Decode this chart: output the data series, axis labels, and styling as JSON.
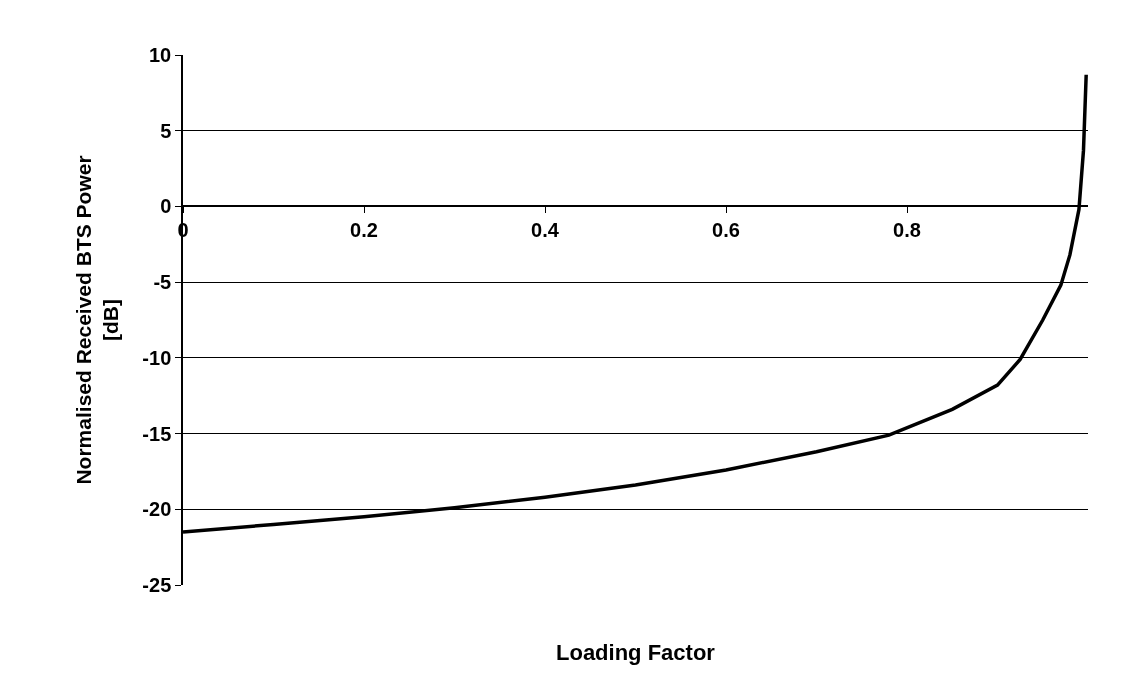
{
  "chart_data": {
    "type": "line",
    "xlabel": "Loading Factor",
    "ylabel": "Normalised Received BTS Power\n[dB]",
    "x": [
      0,
      0.1,
      0.2,
      0.3,
      0.4,
      0.5,
      0.6,
      0.7,
      0.78,
      0.85,
      0.9,
      0.925,
      0.95,
      0.97,
      0.98,
      0.99,
      0.995,
      0.998
    ],
    "series": [
      {
        "color": "#000000",
        "values": [
          -21.5,
          -21,
          -20.5,
          -19.9,
          -19.2,
          -18.4,
          -17.4,
          -16.2,
          -15.1,
          -13.4,
          -11.8,
          -10.1,
          -7.5,
          -5.2,
          -3.2,
          -0.2,
          3.7,
          8.7
        ]
      }
    ],
    "xlim": [
      0,
      1
    ],
    "xticks": [
      0,
      0.2,
      0.4,
      0.6,
      0.8
    ],
    "ylim": [
      -25,
      10
    ],
    "yticks": [
      -25,
      -20,
      -15,
      -10,
      -5,
      0,
      5,
      10
    ],
    "grid": "y",
    "marker": "none",
    "line_style": "solid"
  }
}
